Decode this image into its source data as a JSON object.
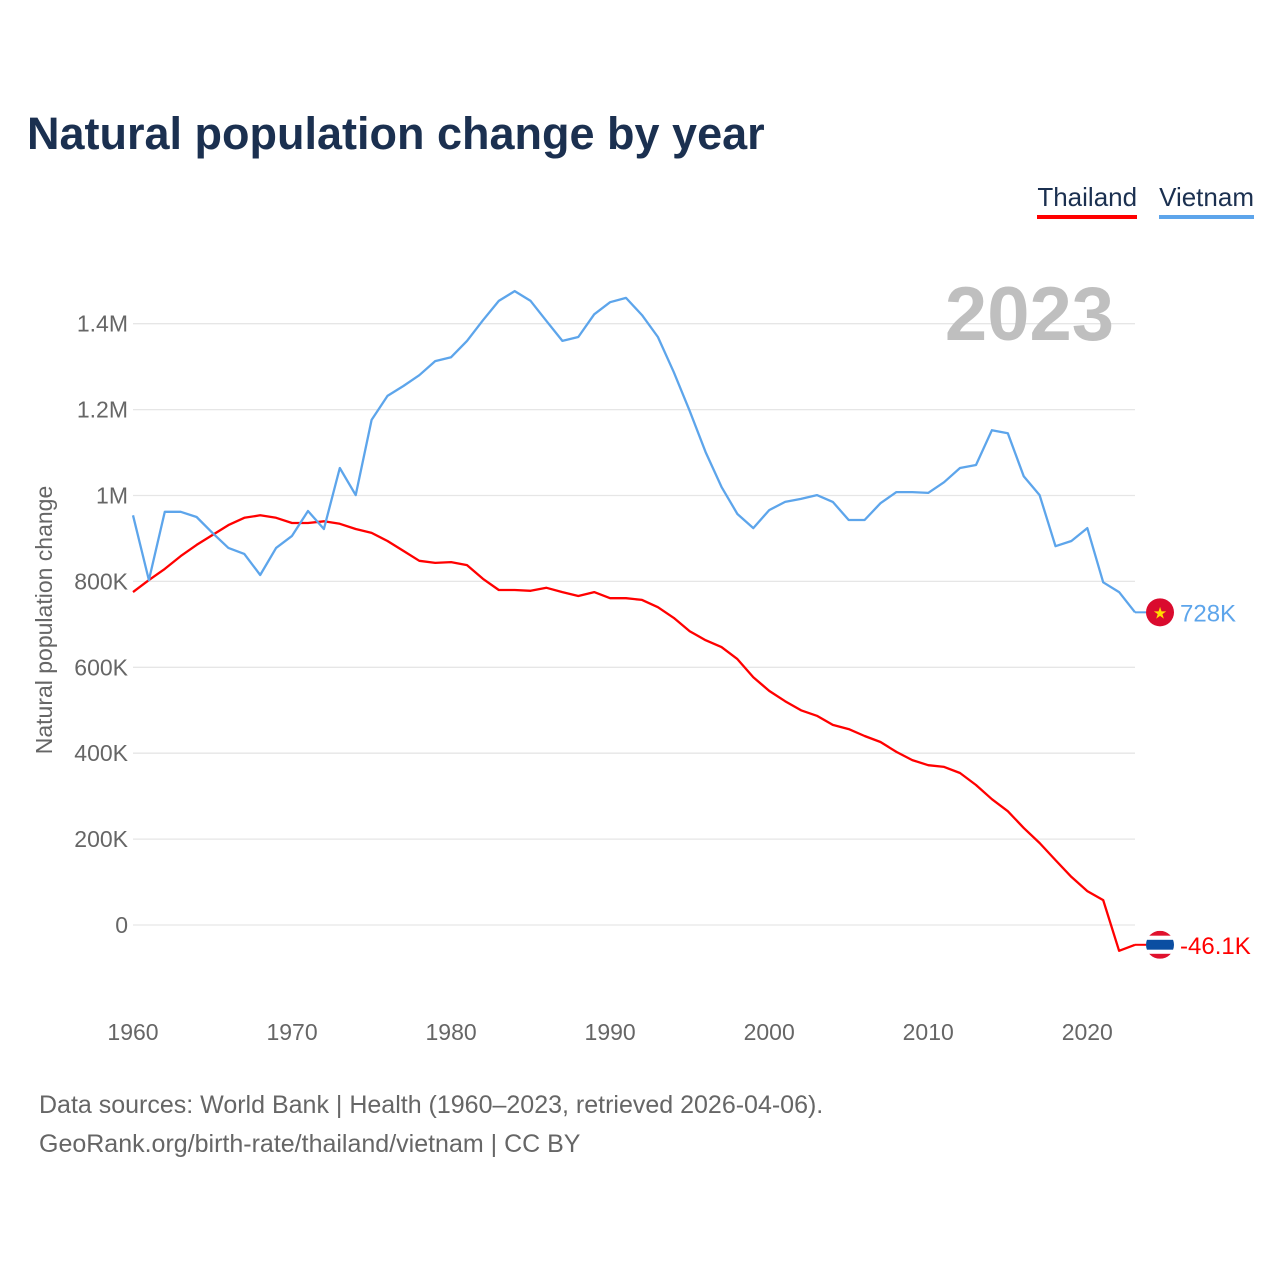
{
  "chart_data": {
    "type": "line",
    "title": "Natural population change by year",
    "ylabel": "Natural population change",
    "xlabel": "",
    "ylim": [
      -200000,
      1600000
    ],
    "xlim": [
      1960,
      2023
    ],
    "grid": true,
    "legend_placement": "top-right",
    "year_label": "2023",
    "x_ticks": [
      1960,
      1970,
      1980,
      1990,
      2000,
      2010,
      2020
    ],
    "y_ticks": [
      {
        "value": 0,
        "label": "0"
      },
      {
        "value": 200000,
        "label": "200K"
      },
      {
        "value": 400000,
        "label": "400K"
      },
      {
        "value": 600000,
        "label": "600K"
      },
      {
        "value": 800000,
        "label": "800K"
      },
      {
        "value": 1000000,
        "label": "1M"
      },
      {
        "value": 1200000,
        "label": "1.2M"
      },
      {
        "value": 1400000,
        "label": "1.4M"
      }
    ],
    "x": [
      1960,
      1961,
      1962,
      1963,
      1964,
      1965,
      1966,
      1967,
      1968,
      1969,
      1970,
      1971,
      1972,
      1973,
      1974,
      1975,
      1976,
      1977,
      1978,
      1979,
      1980,
      1981,
      1982,
      1983,
      1984,
      1985,
      1986,
      1987,
      1988,
      1989,
      1990,
      1991,
      1992,
      1993,
      1994,
      1995,
      1996,
      1997,
      1998,
      1999,
      2000,
      2001,
      2002,
      2003,
      2004,
      2005,
      2006,
      2007,
      2008,
      2009,
      2010,
      2011,
      2012,
      2013,
      2014,
      2015,
      2016,
      2017,
      2018,
      2019,
      2020,
      2021,
      2022,
      2023
    ],
    "series": [
      {
        "name": "Thailand",
        "color": "#ff0000",
        "end_label": "-46.1K",
        "flag": "thailand-flag",
        "values": [
          775000,
          803000,
          829000,
          859000,
          885000,
          908000,
          931000,
          948000,
          954000,
          948000,
          936000,
          936000,
          940000,
          934000,
          922000,
          913000,
          894000,
          871000,
          848000,
          843000,
          845000,
          838000,
          806000,
          780000,
          780000,
          778000,
          785000,
          775000,
          766000,
          775000,
          761000,
          761000,
          757000,
          740000,
          715000,
          684000,
          663000,
          647000,
          619000,
          577000,
          545000,
          521000,
          500000,
          487000,
          466000,
          456000,
          440000,
          426000,
          403000,
          384000,
          372000,
          368000,
          354000,
          326000,
          293000,
          265000,
          226000,
          191000,
          151000,
          112000,
          79000,
          58000,
          -60000,
          -46100
        ]
      },
      {
        "name": "Vietnam",
        "color": "#5da5eb",
        "end_label": "728K",
        "flag": "vietnam-flag",
        "values": [
          954000,
          803000,
          962000,
          962000,
          950000,
          913000,
          878000,
          864000,
          815000,
          878000,
          906000,
          964000,
          922000,
          1064000,
          1001000,
          1176000,
          1232000,
          1255000,
          1280000,
          1313000,
          1322000,
          1360000,
          1408000,
          1453000,
          1476000,
          1453000,
          1406000,
          1360000,
          1369000,
          1422000,
          1450000,
          1460000,
          1420000,
          1369000,
          1287000,
          1197000,
          1101000,
          1020000,
          957000,
          924000,
          966000,
          985000,
          992000,
          1001000,
          985000,
          943000,
          943000,
          982000,
          1008000,
          1008000,
          1006000,
          1031000,
          1064000,
          1071000,
          1152000,
          1145000,
          1045000,
          1001000,
          882000,
          894000,
          924000,
          798000,
          775000,
          728000
        ]
      }
    ]
  },
  "footer": {
    "line1": "Data sources: World Bank | Health (1960–2023, retrieved 2026-04-06).",
    "line2": "GeoRank.org/birth-rate/thailand/vietnam | CC BY"
  }
}
